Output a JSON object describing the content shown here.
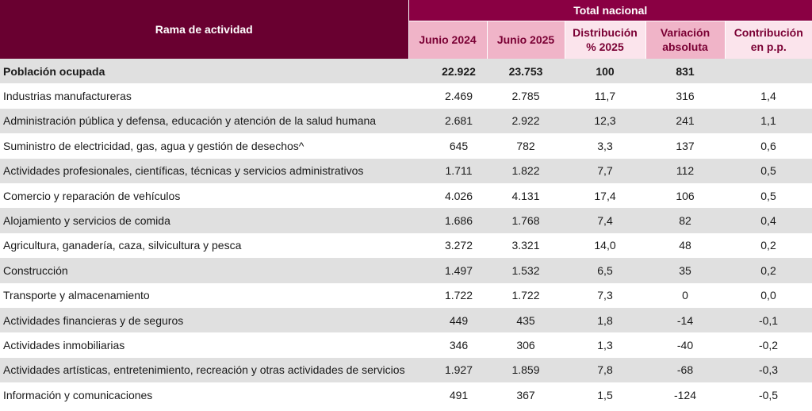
{
  "header": {
    "rama": "Rama de actividad",
    "total": "Total nacional",
    "cols": [
      "Junio 2024",
      "Junio 2025",
      "Distribución\n% 2025",
      "Variación\nabsoluta",
      "Contribución\nen p.p."
    ]
  },
  "chart_data": {
    "type": "table",
    "columns": [
      "Rama de actividad",
      "Junio 2024",
      "Junio 2025",
      "Distribución % 2025",
      "Variación absoluta",
      "Contribución en p.p."
    ],
    "rows": [
      [
        "Población ocupada",
        "22.922",
        "23.753",
        "100",
        "831",
        ""
      ],
      [
        "Industrias manufactureras",
        "2.469",
        "2.785",
        "11,7",
        "316",
        "1,4"
      ],
      [
        "Administración pública y defensa, educación y atención de la salud humana",
        "2.681",
        "2.922",
        "12,3",
        "241",
        "1,1"
      ],
      [
        "Suministro de electricidad, gas, agua y gestión de desechos^",
        "645",
        "782",
        "3,3",
        "137",
        "0,6"
      ],
      [
        "Actividades profesionales, científicas, técnicas y servicios administrativos",
        "1.711",
        "1.822",
        "7,7",
        "112",
        "0,5"
      ],
      [
        "Comercio y reparación de vehículos",
        "4.026",
        "4.131",
        "17,4",
        "106",
        "0,5"
      ],
      [
        "Alojamiento y servicios de comida",
        "1.686",
        "1.768",
        "7,4",
        "82",
        "0,4"
      ],
      [
        "Agricultura, ganadería, caza, silvicultura y pesca",
        "3.272",
        "3.321",
        "14,0",
        "48",
        "0,2"
      ],
      [
        "Construcción",
        "1.497",
        "1.532",
        "6,5",
        "35",
        "0,2"
      ],
      [
        "Transporte y almacenamiento",
        "1.722",
        "1.722",
        "7,3",
        "0",
        "0,0"
      ],
      [
        "Actividades financieras y de seguros",
        "449",
        "435",
        "1,8",
        "-14",
        "-0,1"
      ],
      [
        "Actividades inmobiliarias",
        "346",
        "306",
        "1,3",
        "-40",
        "-0,2"
      ],
      [
        "Actividades artísticas, entretenimiento, recreación y otras actividades de servicios",
        "1.927",
        "1.859",
        "7,8",
        "-68",
        "-0,3"
      ],
      [
        "Información y comunicaciones",
        "491",
        "367",
        "1,5",
        "-124",
        "-0,5"
      ]
    ]
  }
}
